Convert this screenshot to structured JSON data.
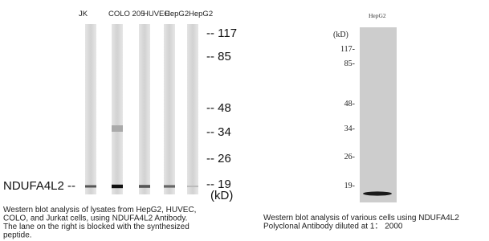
{
  "left_panel": {
    "lanes": [
      "JK",
      "COLO 205",
      "HUVEC",
      "HepG2",
      "HepG2"
    ],
    "markers": [
      "-- 117",
      "-- 85",
      "-- 48",
      "-- 34",
      "-- 26",
      "-- 19"
    ],
    "unit": "(kD)",
    "target": "NDUFA4L2 --",
    "caption": [
      "Western blot analysis of lysates from HepG2, HUVEC,",
      "COLO, and Jurkat cells, using NDUFA4L2 Antibody.",
      "The lane on the right is blocked with the synthesized",
      "peptide."
    ]
  },
  "right_panel": {
    "lane": "HepG2",
    "unit": "(kD)",
    "markers": [
      "117-",
      "85-",
      "48-",
      "34-",
      "26-",
      "19-"
    ],
    "caption": [
      "Western blot analysis of various cells using NDUFA4L2",
      "Polyclonal Antibody diluted at 1： 2000"
    ]
  }
}
